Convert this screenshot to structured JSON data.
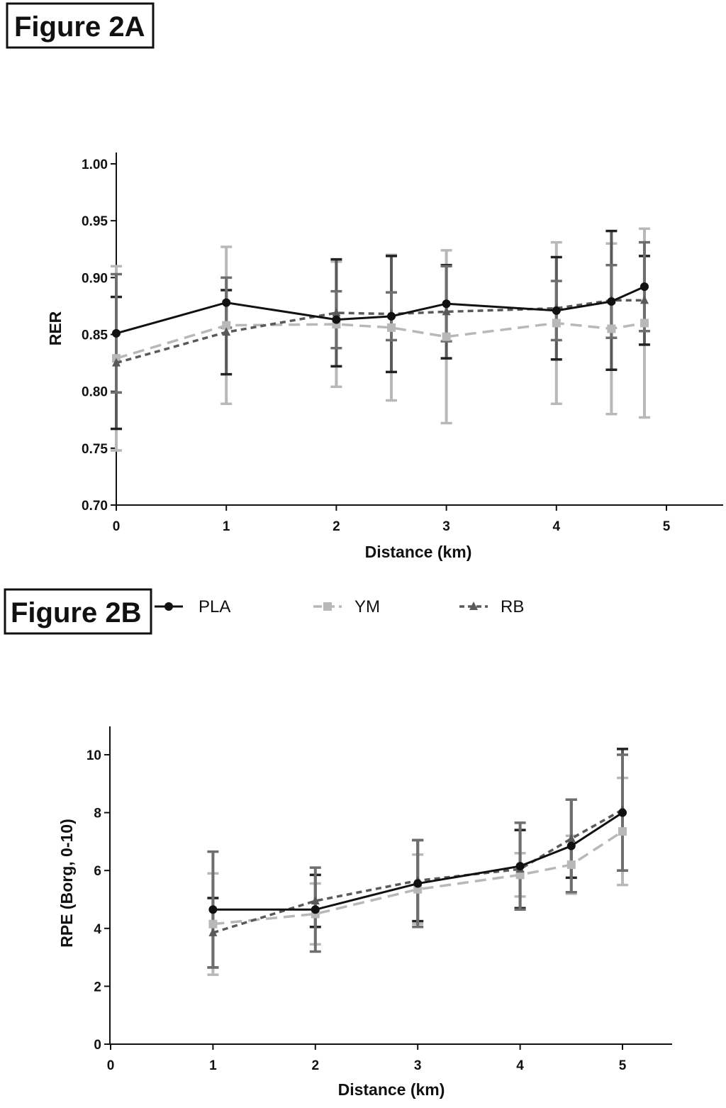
{
  "figure_labels": {
    "a": "Figure 2A",
    "b": "Figure 2B"
  },
  "legend": [
    {
      "name": "PLA",
      "color": "#111111",
      "marker": "circle",
      "dash": "solid"
    },
    {
      "name": "YM",
      "color": "#b8b8b8",
      "marker": "square",
      "dash": "dashed"
    },
    {
      "name": "RB",
      "color": "#5a5a5a",
      "marker": "triangle",
      "dash": "dotted"
    }
  ],
  "chart_data": [
    {
      "type": "line",
      "xlabel": "Distance (km)",
      "ylabel": "RER",
      "xlim": [
        0,
        5.5
      ],
      "ylim": [
        0.7,
        1.0
      ],
      "xticks": [
        "0",
        "1",
        "2",
        "3",
        "4",
        "5"
      ],
      "yticks": [
        "0.70",
        "0.75",
        "0.80",
        "0.85",
        "0.90",
        "0.95",
        "1.00"
      ],
      "x": [
        0,
        1,
        2,
        2.5,
        3,
        4,
        4.5,
        4.8
      ],
      "series": [
        {
          "name": "PLA",
          "values": [
            0.851,
            0.878,
            0.863,
            0.866,
            0.877,
            0.871,
            0.879,
            0.892
          ],
          "errors": [
            0.052,
            0.022,
            0.025,
            0.021,
            0.033,
            0.026,
            0.032,
            0.039
          ]
        },
        {
          "name": "YM",
          "values": [
            0.829,
            0.858,
            0.859,
            0.856,
            0.848,
            0.86,
            0.855,
            0.86
          ],
          "errors": [
            0.081,
            0.069,
            0.055,
            0.064,
            0.076,
            0.071,
            0.075,
            0.083
          ]
        },
        {
          "name": "RB",
          "values": [
            0.825,
            0.852,
            0.869,
            0.868,
            0.87,
            0.873,
            0.88,
            0.88
          ],
          "errors": [
            0.058,
            0.037,
            0.047,
            0.051,
            0.041,
            0.045,
            0.061,
            0.039
          ]
        }
      ]
    },
    {
      "type": "line",
      "xlabel": "Distance (km)",
      "ylabel": "RPE (Borg, 0-10)",
      "xlim": [
        0,
        5.5
      ],
      "ylim": [
        0,
        11
      ],
      "xticks": [
        "0",
        "1",
        "2",
        "3",
        "4",
        "5"
      ],
      "yticks": [
        "0",
        "2",
        "4",
        "6",
        "8",
        "10"
      ],
      "x": [
        1,
        2,
        3,
        4,
        4.5,
        5
      ],
      "series": [
        {
          "name": "PLA",
          "values": [
            4.65,
            4.65,
            5.55,
            6.15,
            6.85,
            8.0
          ],
          "errors": [
            2.0,
            1.45,
            1.5,
            1.5,
            1.6,
            2.0
          ]
        },
        {
          "name": "YM",
          "values": [
            4.15,
            4.5,
            5.35,
            5.85,
            6.2,
            7.35
          ],
          "errors": [
            1.75,
            1.05,
            1.2,
            0.75,
            1.0,
            1.85
          ]
        },
        {
          "name": "RB",
          "values": [
            3.85,
            4.95,
            5.65,
            6.05,
            7.1,
            8.1
          ],
          "errors": [
            1.2,
            0.9,
            1.4,
            1.35,
            1.35,
            2.1
          ]
        }
      ]
    }
  ]
}
